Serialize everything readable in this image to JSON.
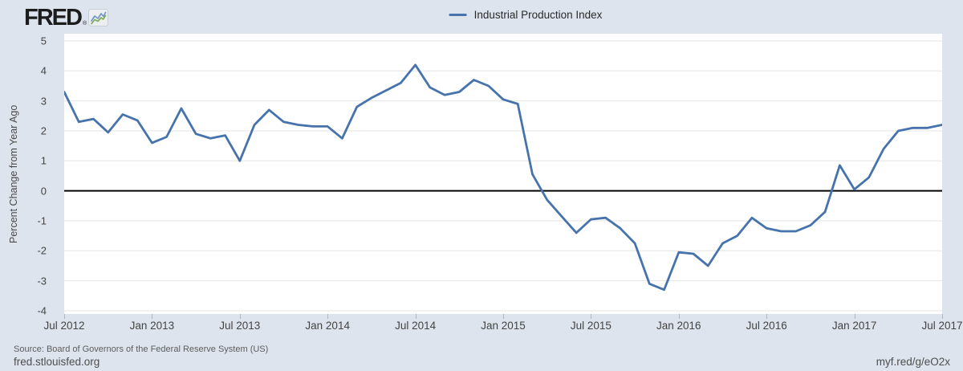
{
  "header": {
    "logo_text": "FRED",
    "registered_mark": "®",
    "legend": {
      "label": "Industrial Production Index"
    }
  },
  "chart_data": {
    "type": "line",
    "title": "Industrial Production Index",
    "ylabel": "Percent Change from Year Ago",
    "legend_position": "top",
    "grid": true,
    "ylim": [
      -4.1,
      5.25
    ],
    "y_ticks": [
      5,
      4,
      3,
      2,
      1,
      0,
      -1,
      -2,
      -3,
      -4
    ],
    "x_tick_labels": [
      "Jul 2012",
      "Jan 2013",
      "Jul 2013",
      "Jan 2014",
      "Jul 2014",
      "Jan 2015",
      "Jul 2015",
      "Jan 2016",
      "Jul 2016",
      "Jan 2017",
      "Jul 2017"
    ],
    "frequency": "monthly",
    "x": [
      "2012-07",
      "2012-08",
      "2012-09",
      "2012-10",
      "2012-11",
      "2012-12",
      "2013-01",
      "2013-02",
      "2013-03",
      "2013-04",
      "2013-05",
      "2013-06",
      "2013-07",
      "2013-08",
      "2013-09",
      "2013-10",
      "2013-11",
      "2013-12",
      "2014-01",
      "2014-02",
      "2014-03",
      "2014-04",
      "2014-05",
      "2014-06",
      "2014-07",
      "2014-08",
      "2014-09",
      "2014-10",
      "2014-11",
      "2014-12",
      "2015-01",
      "2015-02",
      "2015-03",
      "2015-04",
      "2015-05",
      "2015-06",
      "2015-07",
      "2015-08",
      "2015-09",
      "2015-10",
      "2015-11",
      "2015-12",
      "2016-01",
      "2016-02",
      "2016-03",
      "2016-04",
      "2016-05",
      "2016-06",
      "2016-07",
      "2016-08",
      "2016-09",
      "2016-10",
      "2016-11",
      "2016-12",
      "2017-01",
      "2017-02",
      "2017-03",
      "2017-04",
      "2017-05",
      "2017-06",
      "2017-07"
    ],
    "values": [
      3.3,
      2.3,
      2.4,
      1.95,
      2.55,
      2.35,
      1.6,
      1.8,
      2.75,
      1.9,
      1.75,
      1.85,
      1.0,
      2.2,
      2.7,
      2.3,
      2.2,
      2.15,
      2.15,
      1.75,
      2.8,
      3.1,
      3.35,
      3.6,
      4.2,
      3.45,
      3.2,
      3.3,
      3.7,
      3.5,
      3.05,
      2.9,
      0.55,
      -0.3,
      -0.85,
      -1.4,
      -0.95,
      -0.9,
      -1.25,
      -1.75,
      -3.1,
      -3.3,
      -2.05,
      -2.1,
      -2.5,
      -1.75,
      -1.5,
      -0.9,
      -1.25,
      -1.35,
      -1.35,
      -1.15,
      -0.7,
      0.85,
      0.05,
      0.45,
      1.4,
      2.0,
      2.1,
      2.1,
      2.2
    ]
  },
  "footer": {
    "source": "Source: Board of Governors of the Federal Reserve System (US)",
    "site": "fred.stlouisfed.org",
    "short_url": "myf.red/g/eO2x"
  },
  "colors": {
    "background": "#dde4ed",
    "plot_background": "#ffffff",
    "line": "#4673ab",
    "grid": "#e6e6e6",
    "zero_line": "#000000",
    "tick_text": "#444444"
  }
}
